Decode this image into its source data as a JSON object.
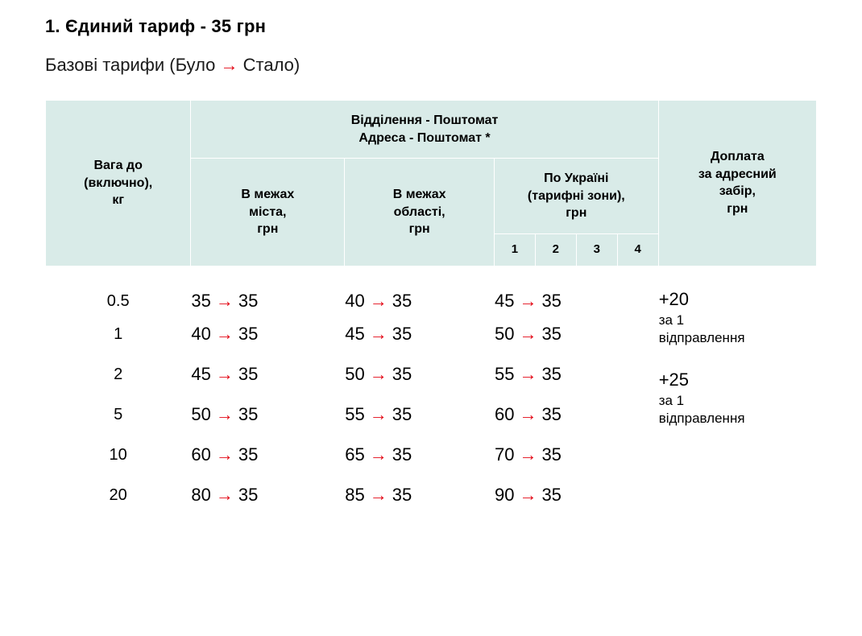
{
  "title": "1. Єдиний тариф  - 35 грн",
  "subtitle_prefix": "Базові тарифи (Було ",
  "subtitle_arrow": "→",
  "subtitle_suffix": " Стало)",
  "headers": {
    "weight": "Вага до\n(включно),\nкг",
    "group": "Відділення - Поштомат\nАдреса - Поштомат *",
    "city": "В межах\nміста,\nгрн",
    "region": "В межах\nобласті,\nгрн",
    "ukraine": "По Україні\n(тарифні зони),\nгрн",
    "zones": [
      "1",
      "2",
      "3",
      "4"
    ],
    "surcharge": "Доплата\nза адресний\nзабір,\nгрн"
  },
  "colors": {
    "accent_red": "#e30613",
    "header_bg": "#d9ebe8",
    "border": "#ffffff",
    "group_divider": "#9c9c9c",
    "text": "#000000",
    "page_bg": "#ffffff"
  },
  "rows": [
    {
      "weight": "0.5",
      "city_old": "35",
      "city_new": "35",
      "region_old": "40",
      "region_new": "35",
      "ua_old": "45",
      "ua_new": "35"
    },
    {
      "weight": "1",
      "city_old": "40",
      "city_new": "35",
      "region_old": "45",
      "region_new": "35",
      "ua_old": "50",
      "ua_new": "35"
    },
    {
      "weight": "2",
      "city_old": "45",
      "city_new": "35",
      "region_old": "50",
      "region_new": "35",
      "ua_old": "55",
      "ua_new": "35"
    },
    {
      "weight": "5",
      "city_old": "50",
      "city_new": "35",
      "region_old": "55",
      "region_new": "35",
      "ua_old": "60",
      "ua_new": "35"
    },
    {
      "weight": "10",
      "city_old": "60",
      "city_new": "35",
      "region_old": "65",
      "region_new": "35",
      "ua_old": "70",
      "ua_new": "35"
    },
    {
      "weight": "20",
      "city_old": "80",
      "city_new": "35",
      "region_old": "85",
      "region_new": "35",
      "ua_old": "90",
      "ua_new": "35"
    }
  ],
  "surcharge": {
    "group1": {
      "amount": "+20",
      "note": "за 1\nвідправлення"
    },
    "group2": {
      "amount": "+25",
      "note": "за 1\nвідправлення"
    }
  },
  "arrow_glyph": "→"
}
